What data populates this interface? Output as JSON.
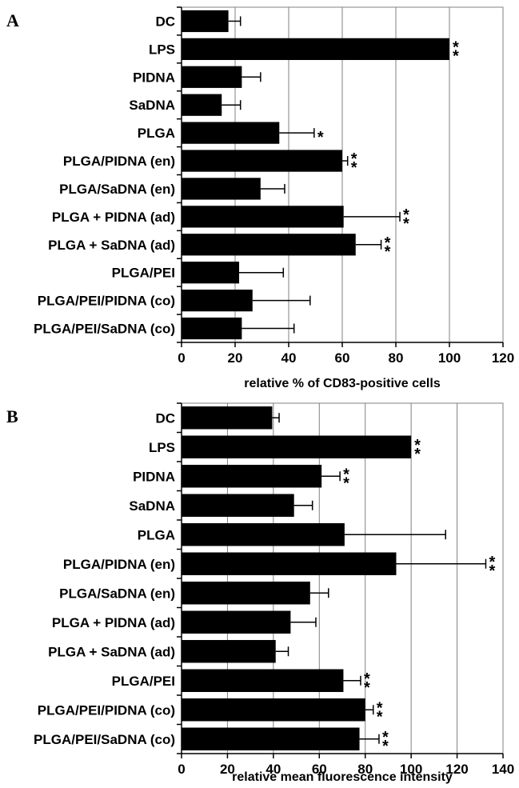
{
  "colors": {
    "bar": "#000000",
    "grid": "#808080",
    "background": "#ffffff"
  },
  "chart_data": [
    {
      "type": "bar",
      "orientation": "horizontal",
      "panel": "A",
      "xlabel": "relative % of CD83-positive cells",
      "xlim": [
        0,
        120
      ],
      "xticks": [
        0,
        20,
        40,
        60,
        80,
        100,
        120
      ],
      "grid": true,
      "categories": [
        "DC",
        "LPS",
        "PIDNA",
        "SaDNA",
        "PLGA",
        "PLGA/PIDNA (en)",
        "PLGA/SaDNA (en)",
        "PLGA + PIDNA (ad)",
        "PLGA + SaDNA (ad)",
        "PLGA/PEI",
        "PLGA/PEI/PIDNA (co)",
        "PLGA/PEI/SaDNA (co)"
      ],
      "values": [
        17.5,
        100,
        22.5,
        15,
        36.5,
        60,
        29.5,
        60.5,
        65,
        21.5,
        26.5,
        22.5
      ],
      "errors": [
        4.5,
        0,
        7,
        7,
        13,
        2,
        9,
        21,
        9.5,
        16.5,
        21.5,
        19.5
      ],
      "significance": [
        "",
        "**",
        "",
        "",
        "*",
        "**",
        "",
        "**",
        "**",
        "",
        "",
        ""
      ]
    },
    {
      "type": "bar",
      "orientation": "horizontal",
      "panel": "B",
      "xlabel": "relative mean fluorescence intensity",
      "xlim": [
        0,
        140
      ],
      "xticks": [
        0,
        20,
        40,
        60,
        80,
        100,
        120,
        140
      ],
      "grid": true,
      "categories": [
        "DC",
        "LPS",
        "PIDNA",
        "SaDNA",
        "PLGA",
        "PLGA/PIDNA (en)",
        "PLGA/SaDNA (en)",
        "PLGA + PIDNA (ad)",
        "PLGA + SaDNA (ad)",
        "PLGA/PEI",
        "PLGA/PEI/PIDNA (co)",
        "PLGA/PEI/SaDNA (co)"
      ],
      "values": [
        39.5,
        100,
        61,
        49,
        71,
        93.5,
        56,
        47.5,
        41,
        70.5,
        80,
        77.5
      ],
      "errors": [
        3,
        0,
        8,
        8,
        44,
        39,
        8,
        11,
        5.5,
        7.5,
        3.5,
        8.5
      ],
      "significance": [
        "",
        "**",
        "**",
        "",
        "",
        "**",
        "",
        "",
        "",
        "**",
        "**",
        "**"
      ]
    }
  ]
}
